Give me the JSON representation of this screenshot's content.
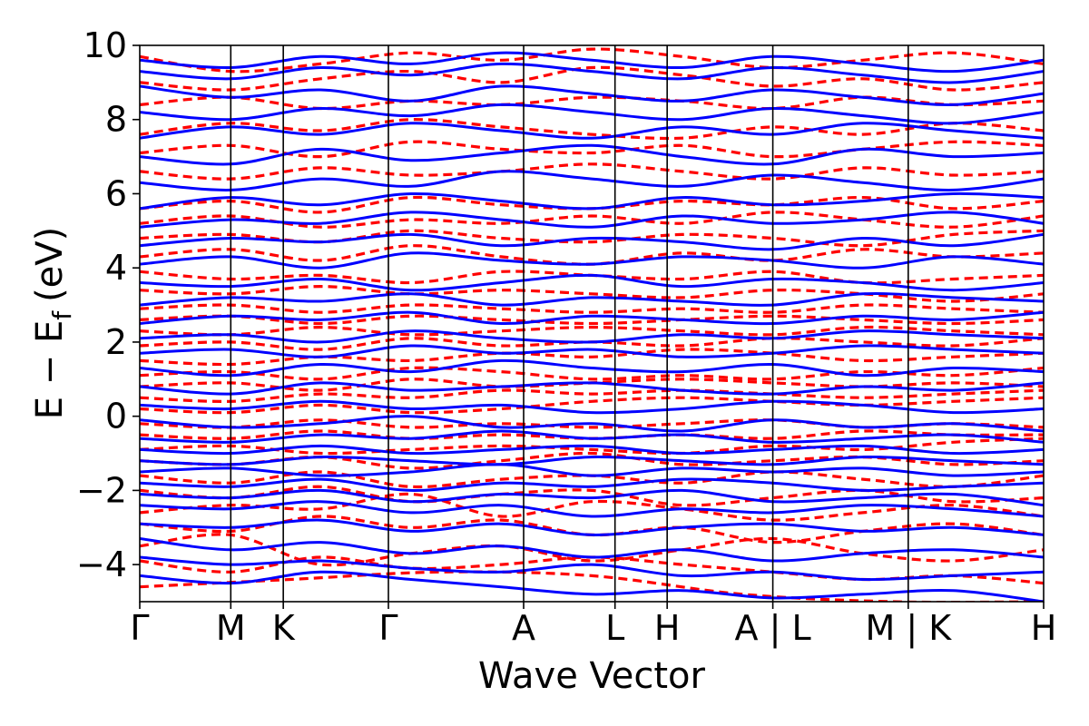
{
  "chart_data": {
    "type": "line",
    "title": "",
    "xlabel": "Wave Vector",
    "ylabel": "E − Eᶠ (eV)",
    "ylabel_main": "E − E",
    "ylabel_sub": "f",
    "ylabel_unit": "(eV)",
    "ylim": [
      -5,
      10
    ],
    "yticks": [
      -4,
      -2,
      0,
      2,
      4,
      6,
      8,
      10
    ],
    "ytick_labels": [
      "−4",
      "−2",
      "0",
      "2",
      "4",
      "6",
      "8",
      "10"
    ],
    "xlim": [
      0,
      1
    ],
    "kpoints": [
      {
        "label": "Γ",
        "x": 0.0
      },
      {
        "label": "M",
        "x": 0.1007
      },
      {
        "label": "K",
        "x": 0.1588
      },
      {
        "label": "Γ",
        "x": 0.2751
      },
      {
        "label": "A",
        "x": 0.4247
      },
      {
        "label": "L",
        "x": 0.5258
      },
      {
        "label": "H",
        "x": 0.5835
      },
      {
        "label": "A | L",
        "x": 0.7004
      },
      {
        "label": "M | K",
        "x": 0.8502
      },
      {
        "label": "H",
        "x": 1.0
      }
    ],
    "grid": false,
    "legend": "none",
    "series_styles": [
      {
        "color": "#ff0000",
        "dash": "dashed",
        "width": 3.2
      },
      {
        "color": "#0000ff",
        "dash": "solid",
        "width": 3.0
      }
    ],
    "bands_red": [
      {
        "anchors": [
          -4.6,
          -4.4,
          -4.2,
          -4.3,
          -4.8,
          -5.0,
          -5.0
        ]
      },
      {
        "anchors": [
          -3.9,
          -4.2,
          -3.8,
          -4.1,
          -4.0,
          -3.8,
          -4.0,
          -4.2,
          -4.4,
          -4.3,
          -4.5
        ]
      },
      {
        "anchors": [
          -3.5,
          -3.2,
          -4.0,
          -3.7,
          -3.5,
          -3.9,
          -3.6,
          -3.3,
          -3.7,
          -3.9,
          -3.6
        ]
      },
      {
        "anchors": [
          -2.9,
          -3.1,
          -2.7,
          -3.0,
          -2.8,
          -3.2,
          -3.0,
          -3.4,
          -3.1,
          -2.9,
          -3.2
        ]
      },
      {
        "anchors": [
          -2.6,
          -2.4,
          -2.5,
          -2.1,
          -2.7,
          -2.3,
          -2.5,
          -2.8,
          -2.6,
          -2.4,
          -2.7
        ]
      },
      {
        "anchors": [
          -2.0,
          -2.2,
          -1.9,
          -2.3,
          -2.1,
          -2.0,
          -2.4,
          -2.2,
          -2.0,
          -2.3,
          -2.2
        ]
      },
      {
        "anchors": [
          -1.6,
          -1.8,
          -1.5,
          -1.9,
          -1.7,
          -1.6,
          -1.8,
          -1.5,
          -1.7,
          -1.9,
          -1.6
        ]
      },
      {
        "anchors": [
          -1.2,
          -1.3,
          -1.1,
          -1.4,
          -1.2,
          -1.0,
          -1.3,
          -1.2,
          -1.1,
          -1.3,
          -1.2
        ]
      },
      {
        "anchors": [
          -0.9,
          -0.8,
          -1.0,
          -0.9,
          -0.8,
          -0.9,
          -1.0,
          -0.8,
          -0.9,
          -0.7,
          -0.6
        ]
      },
      {
        "anchors": [
          -0.5,
          -0.6,
          -0.4,
          -0.6,
          -0.5,
          -0.6,
          -0.5,
          -0.6,
          -0.4,
          -0.5,
          -0.5
        ]
      },
      {
        "anchors": [
          -0.2,
          -0.3,
          -0.1,
          -0.3,
          -0.2,
          -0.3,
          -0.2,
          -0.1,
          -0.3,
          -0.2,
          -0.3
        ]
      },
      {
        "anchors": [
          0.2,
          0.1,
          0.3,
          0.1,
          0.2,
          0.4,
          0.5,
          0.4,
          0.3,
          0.4,
          0.5
        ]
      },
      {
        "anchors": [
          0.5,
          0.4,
          0.6,
          0.5,
          0.7,
          0.6,
          0.7,
          0.6,
          0.5,
          0.6,
          0.7
        ]
      },
      {
        "anchors": [
          0.8,
          0.9,
          0.7,
          1.0,
          0.8,
          0.9,
          1.0,
          0.9,
          0.8,
          0.9,
          0.8
        ]
      },
      {
        "anchors": [
          1.1,
          1.2,
          1.0,
          1.3,
          1.2,
          1.0,
          1.1,
          1.0,
          1.2,
          1.1,
          1.3
        ]
      },
      {
        "anchors": [
          1.5,
          1.4,
          1.6,
          1.5,
          1.7,
          1.6,
          1.8,
          1.7,
          1.5,
          1.6,
          1.7
        ]
      },
      {
        "anchors": [
          1.9,
          2.0,
          1.8,
          2.1,
          1.9,
          2.0,
          1.9,
          2.1,
          2.0,
          1.9,
          2.1
        ]
      },
      {
        "anchors": [
          2.3,
          2.2,
          2.4,
          2.2,
          2.3,
          2.4,
          2.3,
          2.2,
          2.4,
          2.3,
          2.2
        ]
      },
      {
        "anchors": [
          2.6,
          2.7,
          2.5,
          2.7,
          2.6,
          2.5,
          2.6,
          2.7,
          2.6,
          2.5,
          2.6
        ]
      },
      {
        "anchors": [
          2.9,
          3.0,
          2.8,
          3.0,
          2.9,
          2.8,
          2.9,
          2.8,
          3.0,
          2.9,
          2.8
        ]
      },
      {
        "anchors": [
          3.4,
          3.3,
          3.5,
          3.3,
          3.4,
          3.3,
          3.2,
          3.4,
          3.3,
          3.1,
          3.3
        ]
      },
      {
        "anchors": [
          3.9,
          3.7,
          3.8,
          3.6,
          3.9,
          3.8,
          3.7,
          3.9,
          3.6,
          3.7,
          3.8
        ]
      },
      {
        "anchors": [
          4.3,
          4.5,
          4.2,
          4.6,
          4.3,
          4.1,
          4.4,
          4.2,
          4.5,
          4.3,
          4.4
        ]
      },
      {
        "anchors": [
          4.8,
          4.9,
          4.7,
          5.0,
          4.8,
          4.7,
          4.9,
          4.8,
          4.6,
          4.9,
          5.0
        ]
      },
      {
        "anchors": [
          5.2,
          5.4,
          5.1,
          5.3,
          5.2,
          5.4,
          5.2,
          5.5,
          5.3,
          5.1,
          5.4
        ]
      },
      {
        "anchors": [
          5.6,
          5.8,
          5.5,
          5.9,
          5.7,
          5.6,
          5.8,
          5.7,
          5.9,
          5.6,
          5.8
        ]
      },
      {
        "anchors": [
          6.6,
          6.4,
          6.7,
          6.5,
          6.6,
          6.8,
          6.6,
          6.4,
          6.7,
          6.5,
          6.6
        ]
      },
      {
        "anchors": [
          7.1,
          7.3,
          7.0,
          7.4,
          7.2,
          7.1,
          7.3,
          7.0,
          7.2,
          7.4,
          7.3
        ]
      },
      {
        "anchors": [
          7.6,
          7.9,
          7.7,
          8.0,
          7.8,
          7.6,
          7.5,
          7.8,
          7.6,
          7.9,
          7.7
        ]
      },
      {
        "anchors": [
          8.4,
          8.6,
          8.3,
          8.5,
          8.4,
          8.6,
          8.5,
          8.3,
          8.6,
          8.4,
          8.5
        ]
      },
      {
        "anchors": [
          9.0,
          8.8,
          9.1,
          9.3,
          9.0,
          9.4,
          9.2,
          8.9,
          9.1,
          8.8,
          9.0
        ]
      },
      {
        "anchors": [
          9.7,
          9.3,
          9.5,
          9.8,
          9.6,
          9.9,
          9.7,
          9.4,
          9.6,
          9.8,
          9.5
        ]
      }
    ],
    "bands_blue": [
      {
        "anchors": [
          -4.3,
          -4.5,
          -4.2,
          -4.4,
          -4.6,
          -4.8,
          -4.7,
          -4.9,
          -4.8,
          -4.7,
          -5.0
        ]
      },
      {
        "anchors": [
          -3.8,
          -4.0,
          -3.9,
          -4.1,
          -4.2,
          -4.0,
          -4.3,
          -4.2,
          -4.4,
          -4.3,
          -4.2
        ]
      },
      {
        "anchors": [
          -3.3,
          -3.6,
          -3.4,
          -3.7,
          -3.5,
          -3.8,
          -3.6,
          -3.9,
          -3.7,
          -3.6,
          -3.8
        ]
      },
      {
        "anchors": [
          -2.9,
          -3.0,
          -2.8,
          -3.1,
          -2.9,
          -3.2,
          -3.0,
          -2.9,
          -3.1,
          -3.0,
          -3.2
        ]
      },
      {
        "anchors": [
          -2.4,
          -2.5,
          -2.3,
          -2.6,
          -2.4,
          -2.7,
          -2.5,
          -2.6,
          -2.4,
          -2.5,
          -2.7
        ]
      },
      {
        "anchors": [
          -2.1,
          -2.2,
          -2.0,
          -2.3,
          -2.1,
          -2.2,
          -2.0,
          -2.3,
          -2.2,
          -2.1,
          -2.4
        ]
      },
      {
        "anchors": [
          -1.8,
          -1.9,
          -1.7,
          -2.0,
          -1.8,
          -1.9,
          -1.7,
          -1.8,
          -2.0,
          -1.9,
          -1.8
        ]
      },
      {
        "anchors": [
          -1.5,
          -1.4,
          -1.6,
          -1.5,
          -1.3,
          -1.6,
          -1.4,
          -1.5,
          -1.4,
          -1.6,
          -1.5
        ]
      },
      {
        "anchors": [
          -1.2,
          -1.3,
          -1.1,
          -1.2,
          -1.3,
          -1.1,
          -1.2,
          -1.3,
          -1.1,
          -1.2,
          -1.3
        ]
      },
      {
        "anchors": [
          -0.9,
          -1.0,
          -0.8,
          -1.0,
          -0.9,
          -0.8,
          -1.0,
          -0.9,
          -0.8,
          -1.0,
          -0.9
        ]
      },
      {
        "anchors": [
          -0.6,
          -0.7,
          -0.5,
          -0.6,
          -0.4,
          -0.6,
          -0.5,
          -0.7,
          -0.6,
          -0.5,
          -0.7
        ]
      },
      {
        "anchors": [
          -0.1,
          -0.3,
          -0.2,
          0.0,
          -0.3,
          -0.2,
          -0.4,
          -0.1,
          -0.3,
          -0.2,
          -0.4
        ]
      },
      {
        "anchors": [
          0.3,
          0.2,
          0.4,
          0.2,
          0.3,
          0.1,
          0.2,
          0.4,
          0.3,
          0.1,
          0.2
        ]
      },
      {
        "anchors": [
          0.8,
          0.6,
          0.9,
          0.7,
          0.8,
          0.9,
          0.7,
          0.6,
          0.8,
          0.7,
          0.9
        ]
      },
      {
        "anchors": [
          1.3,
          1.1,
          1.4,
          1.2,
          1.5,
          1.3,
          1.2,
          1.4,
          1.1,
          1.3,
          1.2
        ]
      },
      {
        "anchors": [
          1.7,
          1.8,
          1.6,
          1.9,
          1.7,
          1.8,
          1.6,
          1.7,
          1.9,
          1.8,
          1.7
        ]
      },
      {
        "anchors": [
          2.1,
          2.2,
          2.0,
          2.3,
          2.1,
          2.0,
          2.2,
          2.1,
          2.3,
          2.2,
          2.1
        ]
      },
      {
        "anchors": [
          2.5,
          2.7,
          2.6,
          2.8,
          2.5,
          2.7,
          2.6,
          2.5,
          2.7,
          2.6,
          2.8
        ]
      },
      {
        "anchors": [
          3.0,
          3.2,
          3.1,
          3.3,
          3.0,
          3.2,
          3.1,
          3.0,
          3.3,
          3.2,
          3.1
        ]
      },
      {
        "anchors": [
          3.6,
          3.5,
          3.7,
          3.4,
          3.6,
          3.8,
          3.5,
          3.7,
          3.6,
          3.4,
          3.6
        ]
      },
      {
        "anchors": [
          4.1,
          4.3,
          4.0,
          4.4,
          4.2,
          4.1,
          4.3,
          4.2,
          4.0,
          4.3,
          4.1
        ]
      },
      {
        "anchors": [
          4.6,
          4.8,
          4.7,
          4.9,
          4.6,
          4.8,
          4.7,
          4.5,
          4.8,
          4.6,
          4.9
        ]
      },
      {
        "anchors": [
          5.1,
          5.3,
          5.2,
          5.5,
          5.3,
          5.1,
          5.4,
          5.2,
          5.3,
          5.5,
          5.2
        ]
      },
      {
        "anchors": [
          5.6,
          5.9,
          5.7,
          6.0,
          5.8,
          5.6,
          5.9,
          5.7,
          5.8,
          6.0,
          5.9
        ]
      },
      {
        "anchors": [
          6.3,
          6.1,
          6.4,
          6.2,
          6.6,
          6.4,
          6.2,
          6.5,
          6.3,
          6.1,
          6.4
        ]
      },
      {
        "anchors": [
          7.0,
          6.8,
          7.2,
          6.9,
          7.1,
          7.3,
          7.0,
          6.8,
          7.2,
          7.0,
          7.1
        ]
      },
      {
        "anchors": [
          7.5,
          7.8,
          7.6,
          7.9,
          7.7,
          7.5,
          7.8,
          7.6,
          7.9,
          7.7,
          7.5
        ]
      },
      {
        "anchors": [
          8.2,
          8.0,
          8.3,
          8.1,
          8.4,
          8.2,
          8.0,
          8.3,
          8.1,
          7.9,
          8.2
        ]
      },
      {
        "anchors": [
          8.9,
          8.6,
          8.8,
          8.5,
          8.9,
          8.7,
          8.5,
          8.8,
          8.6,
          8.4,
          8.7
        ]
      },
      {
        "anchors": [
          9.3,
          9.1,
          9.4,
          9.2,
          9.5,
          9.3,
          9.1,
          9.4,
          9.2,
          9.0,
          9.3
        ]
      },
      {
        "anchors": [
          9.6,
          9.4,
          9.7,
          9.5,
          9.8,
          9.6,
          9.4,
          9.7,
          9.5,
          9.3,
          9.6
        ]
      }
    ]
  }
}
